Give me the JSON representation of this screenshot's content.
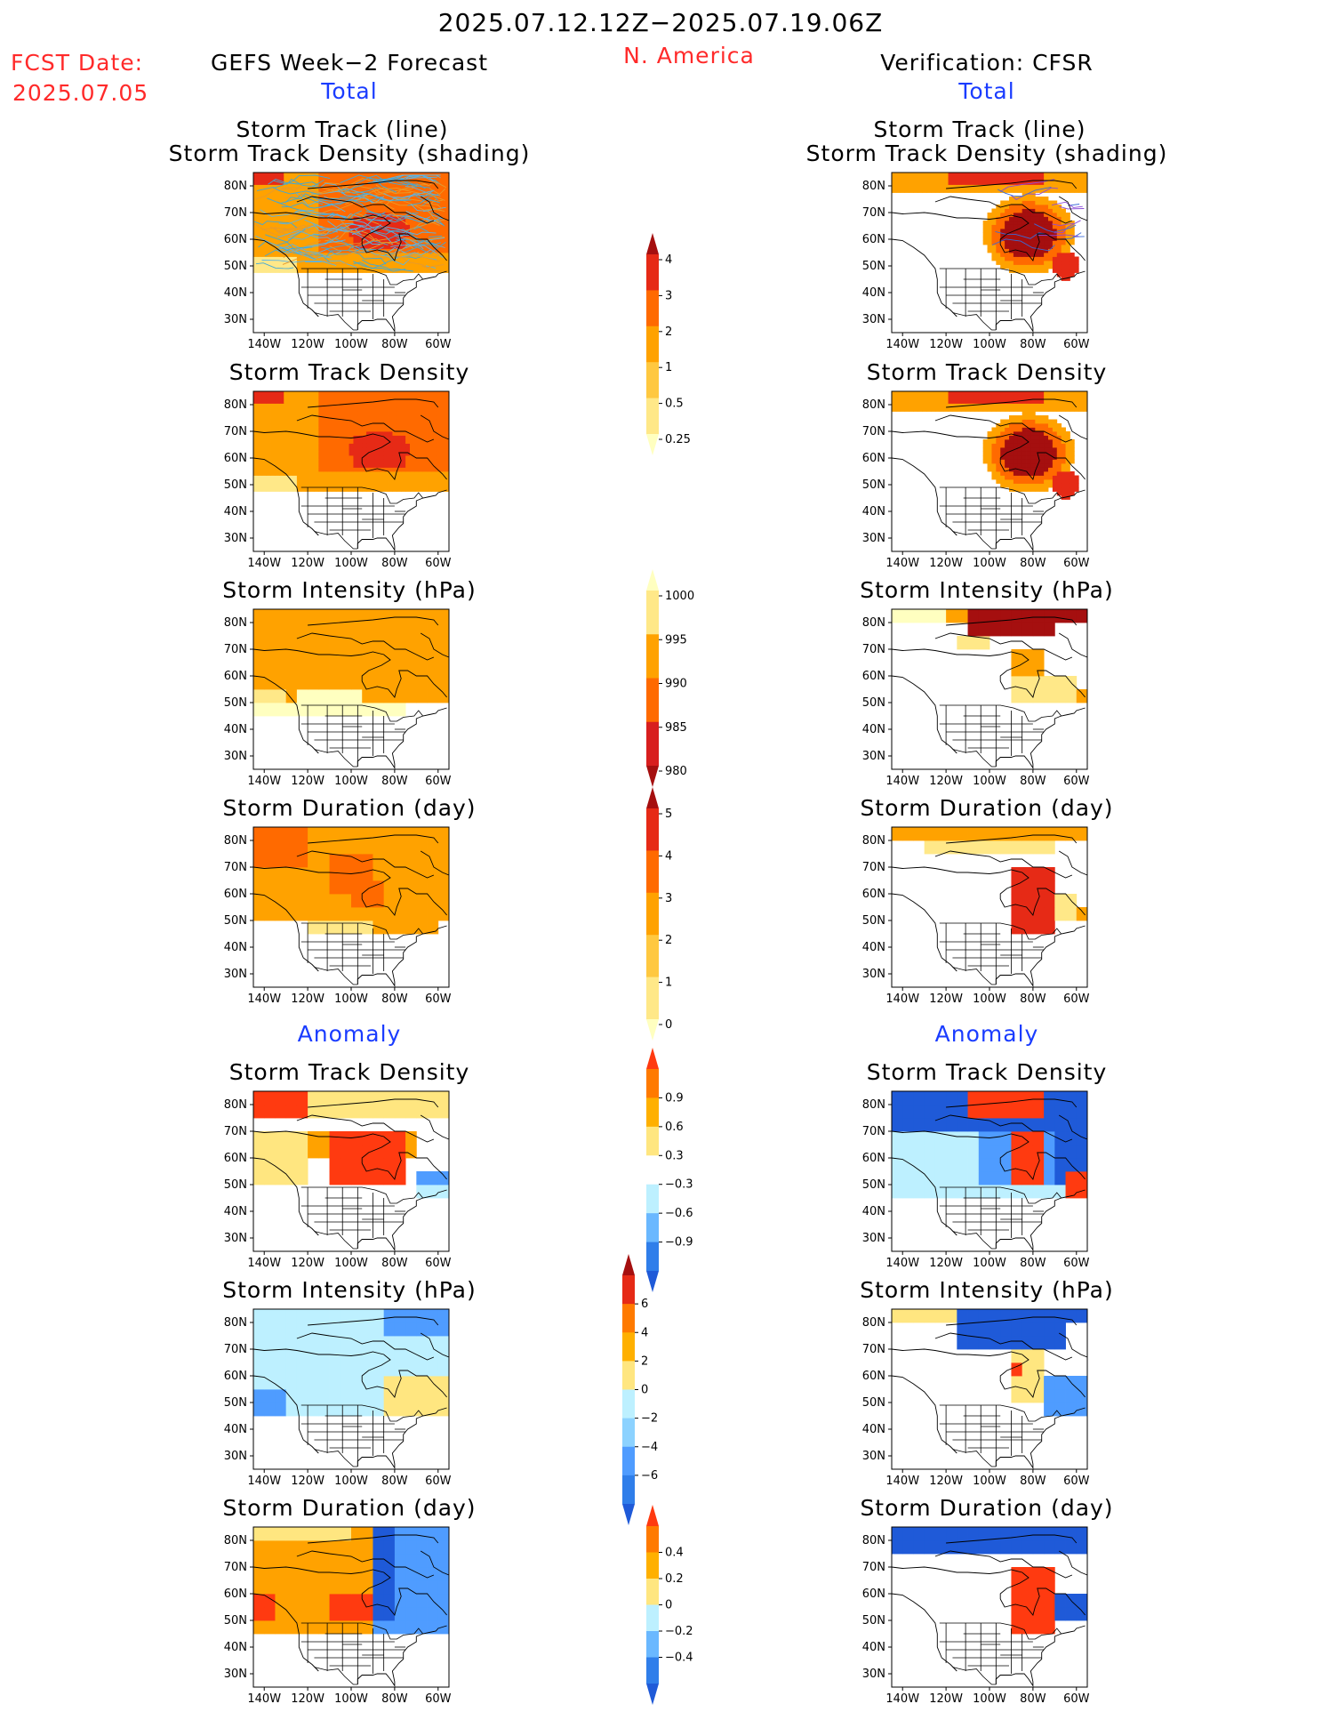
{
  "header": {
    "period": "2025.07.12.12Z−2025.07.19.06Z",
    "region": "N. America",
    "fcst_label": "FCST Date:",
    "fcst_date": "2025.07.05",
    "left_title": "GEFS Week−2 Forecast",
    "right_title": "Verification: CFSR"
  },
  "sections": {
    "total": "Total",
    "anomaly": "Anomaly"
  },
  "panel_titles": {
    "track_line_1": "Storm Track (line)",
    "track_line_2": "Storm Track Density (shading)",
    "density": "Storm Track Density",
    "intensity": "Storm Intensity (hPa)",
    "duration": "Storm Duration (day)"
  },
  "axes": {
    "lat_labels": [
      "80N",
      "70N",
      "60N",
      "50N",
      "40N",
      "30N"
    ],
    "lon_labels": [
      "140W",
      "120W",
      "100W",
      "80W",
      "60W"
    ]
  },
  "colorbars": [
    {
      "id": "density_total",
      "labels": [
        "4",
        "3",
        "2",
        "1",
        "0.5",
        "0.25"
      ],
      "colors": [
        "#a50f0f",
        "#e62a16",
        "#ff6a00",
        "#ffa200",
        "#ffc840",
        "#ffe888",
        "#ffffc0"
      ]
    },
    {
      "id": "intensity_total",
      "labels": [
        "1000",
        "995",
        "990",
        "985",
        "980"
      ],
      "colors": [
        "#ffffc0",
        "#ffe888",
        "#ffa200",
        "#ff6a00",
        "#d81e1e",
        "#a50f0f"
      ]
    },
    {
      "id": "duration_total",
      "labels": [
        "5",
        "4",
        "3",
        "2",
        "1",
        "0"
      ],
      "colors": [
        "#a50f0f",
        "#e62a16",
        "#ff6a00",
        "#ffa200",
        "#ffc840",
        "#ffe888",
        "#ffffc0"
      ]
    },
    {
      "id": "density_anom",
      "labels": [
        "0.9",
        "0.6",
        "0.3",
        "−0.3",
        "−0.6",
        "−0.9"
      ],
      "colors": [
        "#ff3a10",
        "#ff7a00",
        "#ffb000",
        "#ffe680",
        "#ffffff",
        "#bdf0ff",
        "#6ab8ff",
        "#2f7eea",
        "#1f5ad8"
      ]
    },
    {
      "id": "intensity_anom",
      "labels": [
        "6",
        "4",
        "2",
        "0",
        "−2",
        "−4",
        "−6"
      ],
      "colors": [
        "#a50f0f",
        "#e62a16",
        "#ff7a00",
        "#ffb000",
        "#ffe680",
        "#bdf0ff",
        "#8cd2ff",
        "#4f9cff",
        "#2f7eea",
        "#1f5ad8"
      ]
    },
    {
      "id": "duration_anom",
      "labels": [
        "0.4",
        "0.2",
        "0",
        "−0.2",
        "−0.4"
      ],
      "colors": [
        "#ff3a10",
        "#ff7a00",
        "#ffb000",
        "#ffe680",
        "#bdf0ff",
        "#6ab8ff",
        "#2f7eea",
        "#1f5ad8"
      ]
    }
  ]
}
